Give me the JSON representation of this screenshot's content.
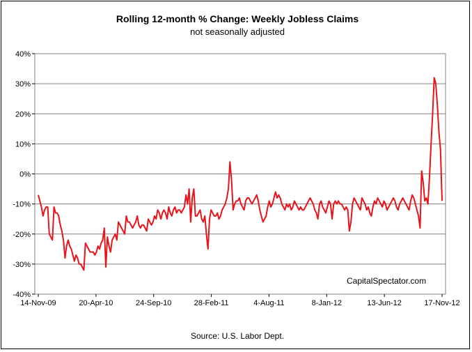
{
  "chart_data": {
    "type": "line",
    "title": "Rolling 12-month %  Change: Weekly Jobless Claims",
    "subtitle": "not seasonally adjusted",
    "source": "Source: U.S. Labor Dept.",
    "watermark": "CapitalSpectator.com",
    "xlabel": "",
    "ylabel": "",
    "ylim": [
      -40,
      40
    ],
    "y_ticks": [
      40,
      30,
      20,
      10,
      0,
      -10,
      -20,
      -30,
      -40
    ],
    "y_tick_labels": [
      "40%",
      "30%",
      "20%",
      "10%",
      "0%",
      "-10%",
      "-20%",
      "-30%",
      "-40%"
    ],
    "x_tick_labels": [
      "14-Nov-09",
      "20-Apr-10",
      "24-Sep-10",
      "28-Feb-11",
      "4-Aug-11",
      "8-Jan-12",
      "13-Jun-12",
      "17-Nov-12"
    ],
    "grid": {
      "horizontal": true,
      "vertical": false
    },
    "line_color": "#e8141b",
    "series": [
      {
        "values": [
          -7,
          -9,
          -11,
          -14,
          -12,
          -11,
          -11,
          -20,
          -21,
          -22,
          -11,
          -13,
          -13,
          -14,
          -17,
          -19,
          -22,
          -28,
          -24,
          -22,
          -24,
          -25,
          -27,
          -29,
          -27,
          -28,
          -30,
          -30,
          -31,
          -32,
          -23,
          -24,
          -25,
          -26,
          -26,
          -26,
          -27,
          -26,
          -24,
          -25,
          -23,
          -22,
          -18,
          -31,
          -21,
          -24,
          -26,
          -22,
          -21,
          -20,
          -22,
          -16,
          -17,
          -18,
          -19,
          -20,
          -14,
          -16,
          -16,
          -17,
          -18,
          -17,
          -16,
          -14,
          -17,
          -18,
          -17,
          -17,
          -18,
          -19,
          -15,
          -16,
          -17,
          -16,
          -14,
          -15,
          -12,
          -13,
          -15,
          -13,
          -12,
          -13,
          -15,
          -11,
          -13,
          -14,
          -12,
          -11,
          -13,
          -12,
          -12,
          -13,
          -12,
          -11,
          -7,
          -10,
          -5,
          -16,
          -8,
          -5,
          -14,
          -14,
          -13,
          -12,
          -15,
          -16,
          -14,
          -20,
          -25,
          -15,
          -12,
          -13,
          -14,
          -14,
          -13,
          -15,
          -14,
          -12,
          -11,
          -10,
          -8,
          -5,
          4,
          -2,
          -12,
          -10,
          -9,
          -9,
          -8,
          -10,
          -11,
          -12,
          -9,
          -8,
          -8,
          -9,
          -10,
          -9,
          -8,
          -7,
          -9,
          -12,
          -14,
          -16,
          -15,
          -14,
          -11,
          -9,
          -11,
          -10,
          -8,
          -6,
          -8,
          -7,
          -8,
          -10,
          -11,
          -12,
          -10,
          -11,
          -10,
          -12,
          -11,
          -9,
          -10,
          -11,
          -12,
          -11,
          -12,
          -12,
          -11,
          -10,
          -9,
          -8,
          -9,
          -10,
          -12,
          -13,
          -15,
          -10,
          -9,
          -11,
          -12,
          -13,
          -11,
          -9,
          -10,
          -15,
          -10,
          -9,
          -10,
          -9,
          -10,
          -10,
          -11,
          -12,
          -11,
          -12,
          -19,
          -16,
          -10,
          -8,
          -9,
          -10,
          -11,
          -12,
          -8,
          -9,
          -10,
          -12,
          -11,
          -13,
          -14,
          -11,
          -9,
          -10,
          -8,
          -9,
          -10,
          -11,
          -9,
          -10,
          -12,
          -11,
          -10,
          -9,
          -8,
          -9,
          -11,
          -12,
          -10,
          -9,
          -8,
          -9,
          -10,
          -11,
          -12,
          -9,
          -7,
          -8,
          -10,
          -12,
          -14,
          -18,
          1,
          -3,
          -9,
          -8,
          -10,
          -1,
          10,
          20,
          32,
          30,
          23,
          14,
          8,
          -9
        ]
      }
    ]
  }
}
